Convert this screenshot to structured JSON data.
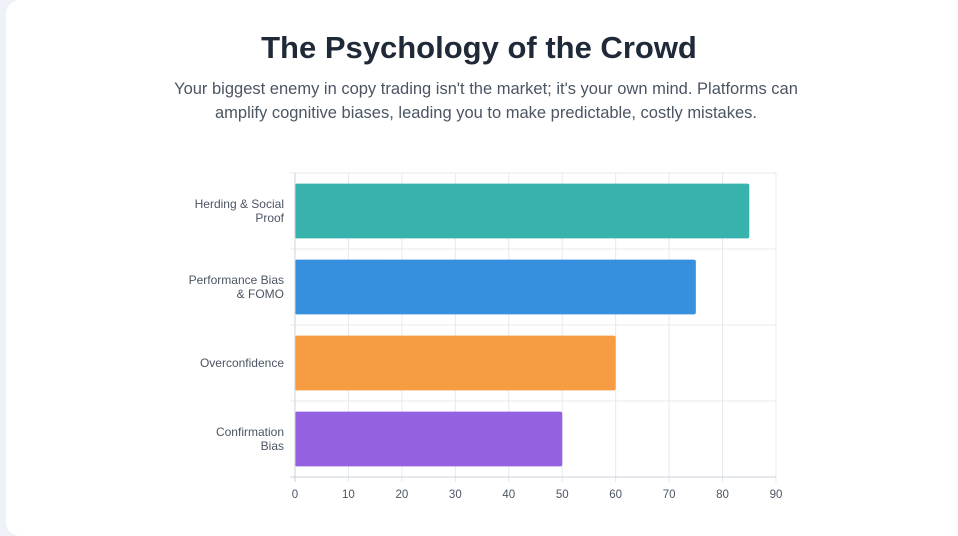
{
  "header": {
    "title": "The Psychology of the Crowd",
    "subtitle": "Your biggest enemy in copy trading isn't the market; it's your own mind. Platforms can amplify cognitive biases, leading you to make predictable, costly mistakes."
  },
  "chart_data": {
    "type": "bar",
    "orientation": "horizontal",
    "title": "",
    "xlabel": "",
    "ylabel": "",
    "categories": [
      [
        "Herding & Social",
        "Proof"
      ],
      [
        "Performance Bias",
        "& FOMO"
      ],
      [
        "Overconfidence"
      ],
      [
        "Confirmation",
        "Bias"
      ]
    ],
    "values": [
      85,
      75,
      60,
      50
    ],
    "colors": [
      "#38b2ac",
      "#3690de",
      "#f69c42",
      "#9461e1"
    ],
    "xlim": [
      0,
      90
    ],
    "xticks": [
      0,
      10,
      20,
      30,
      40,
      50,
      60,
      70,
      80,
      90
    ],
    "grid": true,
    "legend": "none"
  }
}
